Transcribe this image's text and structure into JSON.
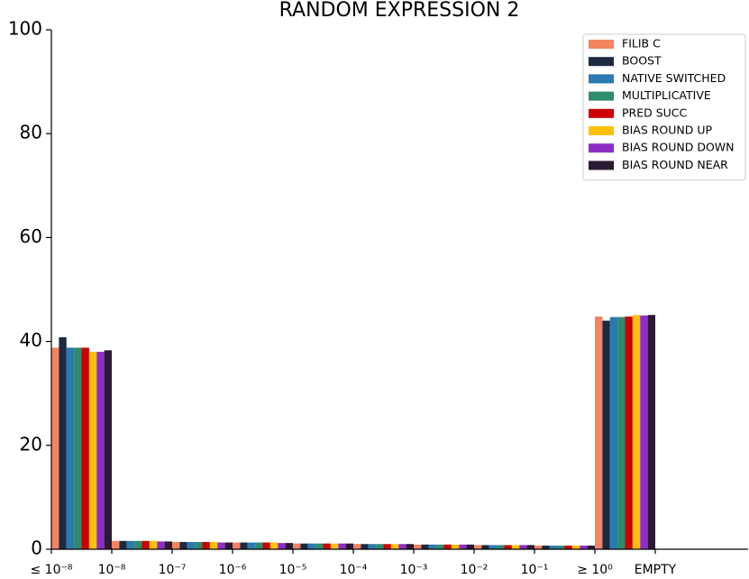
{
  "chart_data": {
    "type": "bar",
    "title": "RANDOM EXPRESSION 2",
    "categories": [
      "≤ 10⁻⁸",
      "10⁻⁸",
      "10⁻⁷",
      "10⁻⁶",
      "10⁻⁵",
      "10⁻⁴",
      "10⁻³",
      "10⁻²",
      "10⁻¹",
      "≥ 10⁰",
      "EMPTY"
    ],
    "series": [
      {
        "name": "FILIB C",
        "color": "#f4845f",
        "values": [
          38.8,
          1.6,
          1.4,
          1.3,
          1.1,
          1.0,
          0.9,
          0.8,
          0.7,
          44.8,
          0
        ]
      },
      {
        "name": "BOOST",
        "color": "#1b2a41",
        "values": [
          40.8,
          1.6,
          1.4,
          1.3,
          1.1,
          1.0,
          0.9,
          0.8,
          0.7,
          44.0,
          0
        ]
      },
      {
        "name": "NATIVE SWITCHED",
        "color": "#2a7ab0",
        "values": [
          38.8,
          1.6,
          1.4,
          1.3,
          1.1,
          1.0,
          0.9,
          0.8,
          0.7,
          44.7,
          0
        ]
      },
      {
        "name": "MULTIPLICATIVE",
        "color": "#2e8b6e",
        "values": [
          38.8,
          1.6,
          1.4,
          1.3,
          1.1,
          1.0,
          0.9,
          0.8,
          0.7,
          44.7,
          0
        ]
      },
      {
        "name": "PRED SUCC",
        "color": "#cc0000",
        "values": [
          38.8,
          1.6,
          1.4,
          1.3,
          1.1,
          1.0,
          0.9,
          0.8,
          0.7,
          44.8,
          0
        ]
      },
      {
        "name": "BIAS ROUND UP",
        "color": "#ffc107",
        "values": [
          38.0,
          1.6,
          1.4,
          1.3,
          1.1,
          1.0,
          0.9,
          0.8,
          0.7,
          45.1,
          0
        ]
      },
      {
        "name": "BIAS ROUND DOWN",
        "color": "#8e2dc5",
        "values": [
          38.0,
          1.5,
          1.3,
          1.2,
          1.1,
          1.0,
          0.9,
          0.8,
          0.7,
          45.0,
          0
        ]
      },
      {
        "name": "BIAS ROUND NEAR",
        "color": "#2b1a33",
        "values": [
          38.3,
          1.5,
          1.3,
          1.2,
          1.1,
          1.0,
          0.9,
          0.8,
          0.7,
          45.1,
          0
        ]
      }
    ],
    "ylim": [
      0,
      100
    ],
    "yticks": [
      0,
      20,
      40,
      60,
      80,
      100
    ],
    "grid": false,
    "legend": "upper right"
  }
}
